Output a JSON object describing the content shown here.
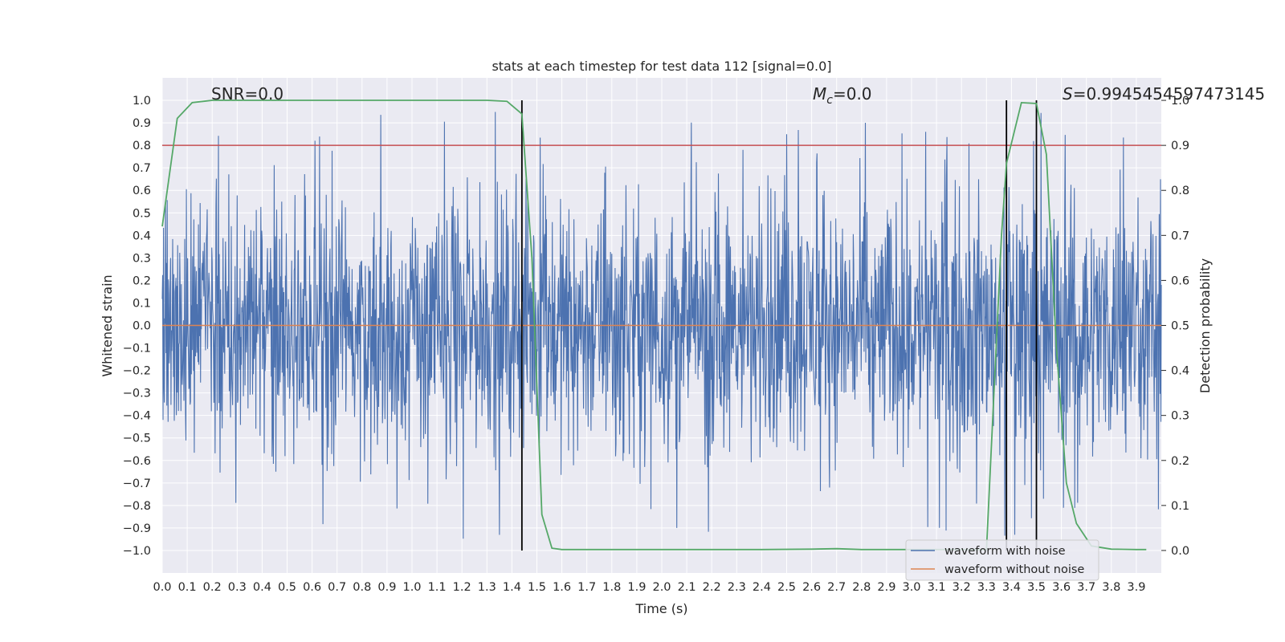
{
  "chart_data": {
    "type": "line",
    "title": "stats at each timestep for test data 112 [signal=0.0]",
    "xlabel": "Time (s)",
    "ylabel": "Whitened strain",
    "y2label": "Detection probability",
    "xlim": [
      0.0,
      4.0
    ],
    "ylim": [
      -1.1,
      1.1
    ],
    "y2lim": [
      -0.05,
      1.05
    ],
    "xticks": [
      0.0,
      0.1,
      0.2,
      0.3,
      0.4,
      0.5,
      0.6,
      0.7,
      0.8,
      0.9,
      1.0,
      1.1,
      1.2,
      1.3,
      1.4,
      1.5,
      1.6,
      1.7,
      1.8,
      1.9,
      2.0,
      2.1,
      2.2,
      2.3,
      2.4,
      2.5,
      2.6,
      2.7,
      2.8,
      2.9,
      3.0,
      3.1,
      3.2,
      3.3,
      3.4,
      3.5,
      3.6,
      3.7,
      3.8,
      3.9
    ],
    "yticks": [
      1.0,
      0.9,
      0.8,
      0.7,
      0.6,
      0.5,
      0.4,
      0.3,
      0.2,
      0.1,
      0.0,
      -0.1,
      -0.2,
      -0.3,
      -0.4,
      -0.5,
      -0.6,
      -0.7,
      -0.8,
      -0.9,
      -1.0
    ],
    "y2ticks": [
      1.0,
      0.9,
      0.8,
      0.7,
      0.6,
      0.5,
      0.4,
      0.3,
      0.2,
      0.1,
      0.0
    ],
    "grid": true,
    "legend_placement": "lower-right",
    "annotations": {
      "snr_label": "SNR=0.0",
      "mc_symbol": "M",
      "mc_subscript": "c",
      "mc_value": "=0.0",
      "s_symbol": "S",
      "s_value": "=0.9945454597473145"
    },
    "threshold_line": {
      "y2": 0.9,
      "color": "#c44e52"
    },
    "vertical_lines_x": [
      1.44,
      3.38,
      3.5
    ],
    "series": [
      {
        "name": "waveform with noise",
        "color": "#4c72b0",
        "kind": "noise",
        "amplitude_typical": 0.35,
        "peak_min": -0.99,
        "peak_max": 1.0
      },
      {
        "name": "waveform without noise",
        "color": "#dd8452",
        "kind": "flat",
        "y": 0.0
      },
      {
        "color": "#55a868",
        "axis": "y2",
        "x": [
          0.0,
          0.06,
          0.12,
          0.2,
          0.3,
          0.5,
          0.7,
          0.9,
          1.1,
          1.3,
          1.38,
          1.44,
          1.48,
          1.52,
          1.56,
          1.6,
          1.8,
          2.0,
          2.2,
          2.4,
          2.6,
          2.7,
          2.8,
          3.0,
          3.2,
          3.3,
          3.33,
          3.36,
          3.38,
          3.44,
          3.5,
          3.54,
          3.58,
          3.62,
          3.66,
          3.72,
          3.8,
          3.9,
          3.94
        ],
        "y": [
          0.72,
          0.96,
          0.995,
          1.0,
          1.0,
          1.0,
          1.0,
          1.0,
          1.0,
          1.0,
          0.998,
          0.97,
          0.65,
          0.08,
          0.005,
          0.002,
          0.002,
          0.002,
          0.002,
          0.002,
          0.003,
          0.004,
          0.002,
          0.002,
          0.002,
          0.002,
          0.35,
          0.7,
          0.86,
          0.995,
          0.993,
          0.88,
          0.45,
          0.15,
          0.06,
          0.01,
          0.003,
          0.002,
          0.002
        ]
      }
    ]
  }
}
